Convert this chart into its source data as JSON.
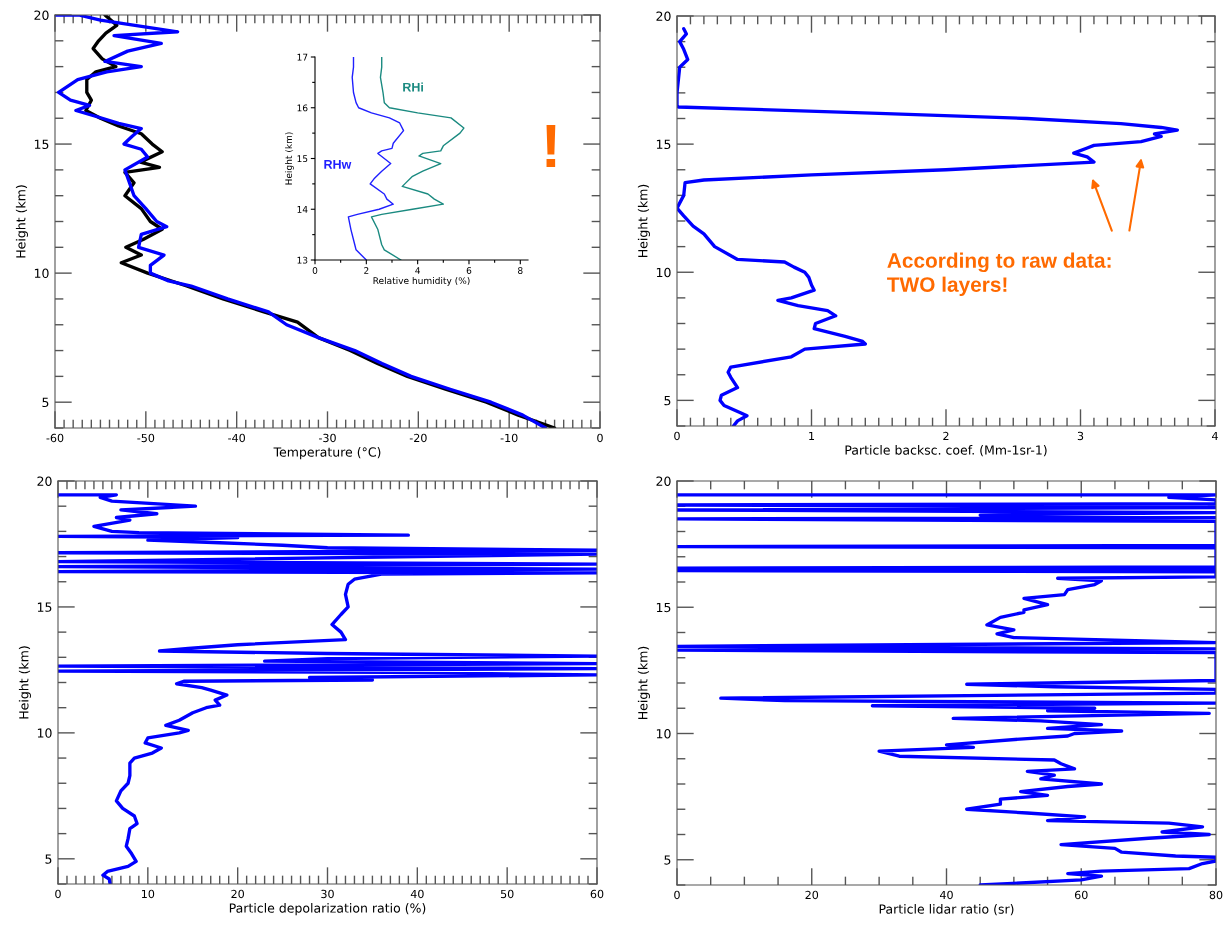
{
  "chart_data": [
    {
      "type": "line",
      "xlabel": "Temperature (°C)",
      "ylabel": "Height (km)",
      "xlim": [
        -60,
        0
      ],
      "ylim": [
        4,
        20
      ],
      "xticks": [
        -60,
        {
          "value": -59,
          "label": null
        },
        {
          "value": -58,
          "label": null
        },
        {
          "value": -57,
          "label": null
        },
        {
          "value": -56,
          "label": null
        },
        {
          "value": -55,
          "label": null
        },
        {
          "value": -54,
          "label": null
        },
        {
          "value": -53,
          "label": null
        },
        {
          "value": -52,
          "label": null
        },
        {
          "value": -51,
          "label": null
        },
        -50,
        {
          "value": -49,
          "label": null
        },
        {
          "value": -48,
          "label": null
        },
        {
          "value": -47,
          "label": null
        },
        {
          "value": -46,
          "label": null
        },
        {
          "value": -45,
          "label": null
        },
        {
          "value": -44,
          "label": null
        },
        {
          "value": -43,
          "label": null
        },
        {
          "value": -42,
          "label": null
        },
        {
          "value": -41,
          "label": null
        },
        -40,
        {
          "value": -39,
          "label": null
        },
        {
          "value": -38,
          "label": null
        },
        {
          "value": -37,
          "label": null
        },
        {
          "value": -36,
          "label": null
        },
        {
          "value": -35,
          "label": null
        },
        {
          "value": -34,
          "label": null
        },
        {
          "value": -33,
          "label": null
        },
        {
          "value": -32,
          "label": null
        },
        {
          "value": -31,
          "label": null
        },
        -30,
        {
          "value": -29,
          "label": null
        },
        {
          "value": -28,
          "label": null
        },
        {
          "value": -27,
          "label": null
        },
        {
          "value": -26,
          "label": null
        },
        {
          "value": -25,
          "label": null
        },
        {
          "value": -24,
          "label": null
        },
        {
          "value": -23,
          "label": null
        },
        {
          "value": -22,
          "label": null
        },
        {
          "value": -21,
          "label": null
        },
        -20,
        {
          "value": -19,
          "label": null
        },
        {
          "value": -18,
          "label": null
        },
        {
          "value": -17,
          "label": null
        },
        {
          "value": -16,
          "label": null
        },
        {
          "value": -15,
          "label": null
        },
        {
          "value": -14,
          "label": null
        },
        {
          "value": -13,
          "label": null
        },
        {
          "value": -12,
          "label": null
        },
        {
          "value": -11,
          "label": null
        },
        -10,
        {
          "value": -9,
          "label": null
        },
        {
          "value": -8,
          "label": null
        },
        {
          "value": -7,
          "label": null
        },
        {
          "value": -6,
          "label": null
        },
        {
          "value": -5,
          "label": null
        },
        {
          "value": -4,
          "label": null
        },
        {
          "value": -3,
          "label": null
        },
        {
          "value": -2,
          "label": null
        },
        {
          "value": -1,
          "label": null
        },
        0
      ],
      "yticks": [
        {
          "value": 4,
          "label": null
        },
        5,
        {
          "value": 6,
          "label": null
        },
        {
          "value": 7,
          "label": null
        },
        {
          "value": 8,
          "label": null
        },
        {
          "value": 9,
          "label": null
        },
        10,
        {
          "value": 11,
          "label": null
        },
        {
          "value": 12,
          "label": null
        },
        {
          "value": 13,
          "label": null
        },
        {
          "value": 14,
          "label": null
        },
        15,
        {
          "value": 16,
          "label": null
        },
        {
          "value": 17,
          "label": null
        },
        {
          "value": 18,
          "label": null
        },
        {
          "value": 19,
          "label": null
        },
        20
      ],
      "legend": false,
      "grid": false,
      "annotations": [
        "!"
      ],
      "series": [
        {
          "color": "#000000",
          "x": [
            -54.5,
            -53.2,
            -54.4,
            -55.2,
            -55.8,
            -54.8,
            -53.3,
            -55.5,
            -56.5,
            -56.5,
            -56.0,
            -56.6,
            -55.0,
            -53.0,
            -50.5,
            -49.3,
            -48.2,
            -50.6,
            -48.5,
            -52.3,
            -51.3,
            -52.3,
            -50.5,
            -49.5,
            -48.2,
            -50.3,
            -52.2,
            -50.5,
            -52.7,
            -49.8,
            -45.5,
            -41.5,
            -37.0,
            -33.3,
            -31.0,
            -27.5,
            -24.5,
            -21.2,
            -17.0,
            -12.5,
            -9.0,
            -5.0
          ],
          "values": [
            20,
            19.6,
            19.3,
            19.0,
            18.7,
            18.3,
            18.0,
            17.8,
            17.5,
            17.0,
            16.7,
            16.3,
            16.0,
            15.7,
            15.4,
            15.0,
            14.7,
            14.3,
            14.1,
            13.9,
            13.5,
            13.0,
            12.5,
            12.0,
            11.7,
            11.3,
            11.0,
            10.7,
            10.4,
            10.0,
            9.5,
            9.0,
            8.5,
            8.1,
            7.5,
            7.0,
            6.5,
            6.0,
            5.5,
            5.0,
            4.5,
            4.0
          ]
        },
        {
          "color": "#0000ff",
          "x": [
            -59.9,
            -57.4,
            -55.0,
            -46.5,
            -53.5,
            -48.3,
            -52.0,
            -54.5,
            -50.5,
            -54.3,
            -57.5,
            -59.6,
            -58.3,
            -56.2,
            -57.7,
            -54.8,
            -53.0,
            -50.5,
            -51.5,
            -52.4,
            -50.5,
            -49.8,
            -52.3,
            -51.8,
            -51.3,
            -50.0,
            -48.8,
            -47.7,
            -50.5,
            -50.8,
            -48.0,
            -49.5,
            -49.5,
            -47.5,
            -45.0,
            -41.0,
            -36.5,
            -34.5,
            -31.0,
            -27.0,
            -24.0,
            -20.8,
            -16.5,
            -12.0,
            -8.5,
            -6.0
          ],
          "values": [
            20,
            20,
            19.8,
            19.35,
            19.2,
            18.9,
            18.6,
            18.2,
            18.0,
            17.8,
            17.5,
            17.0,
            16.7,
            16.5,
            16.3,
            16.0,
            15.8,
            15.6,
            15.3,
            15.0,
            14.8,
            14.5,
            14.0,
            13.5,
            13.0,
            12.5,
            12.0,
            11.8,
            11.5,
            11.0,
            10.7,
            10.3,
            10.0,
            9.7,
            9.5,
            9.0,
            8.5,
            8.0,
            7.5,
            7.0,
            6.5,
            6.0,
            5.5,
            5.0,
            4.5,
            4.0
          ]
        }
      ]
    },
    {
      "type": "line",
      "xlabel": "Relative humidity (%)",
      "ylabel": "Height (km)",
      "xlim": [
        0,
        8.3
      ],
      "ylim": [
        13,
        17
      ],
      "xticks": [
        0,
        {
          "value": 1,
          "label": null
        },
        2,
        {
          "value": 3,
          "label": null
        },
        4,
        {
          "value": 5,
          "label": null
        },
        6,
        {
          "value": 7,
          "label": null
        },
        8
      ],
      "yticks": [
        13,
        {
          "value": 13.5,
          "label": null
        },
        14,
        {
          "value": 14.5,
          "label": null
        },
        15,
        {
          "value": 15.5,
          "label": null
        },
        16,
        {
          "value": 16.5,
          "label": null
        },
        17
      ],
      "legend": false,
      "grid": false,
      "series": [
        {
          "name": "RHw",
          "color": "#1f1fff",
          "x": [
            1.5,
            1.5,
            1.45,
            1.5,
            1.6,
            1.7,
            2.2,
            2.9,
            3.3,
            3.45,
            3.05,
            3.0,
            2.6,
            2.45,
            2.7,
            2.95,
            2.6,
            2.3,
            2.15,
            2.7,
            2.8,
            3.05,
            2.5,
            1.65,
            1.3,
            1.4,
            1.55,
            1.6,
            2.0
          ],
          "values": [
            17.0,
            16.8,
            16.6,
            16.3,
            16.1,
            16.0,
            15.9,
            15.8,
            15.7,
            15.55,
            15.3,
            15.2,
            15.15,
            15.1,
            15.0,
            14.9,
            14.75,
            14.6,
            14.5,
            14.3,
            14.2,
            14.1,
            14.0,
            13.9,
            13.85,
            13.6,
            13.3,
            13.2,
            13.0
          ]
        },
        {
          "name": "RHi",
          "color": "#1a8a80",
          "x": [
            2.6,
            2.6,
            2.55,
            2.65,
            2.7,
            2.9,
            4.0,
            5.3,
            5.8,
            5.65,
            5.0,
            4.9,
            4.2,
            4.05,
            4.9,
            4.2,
            3.8,
            3.5,
            3.4,
            4.4,
            4.65,
            5.0,
            3.8,
            2.6,
            2.2,
            2.45,
            2.6,
            2.7,
            3.35
          ],
          "values": [
            17.0,
            16.8,
            16.6,
            16.3,
            16.1,
            16.0,
            15.9,
            15.8,
            15.6,
            15.5,
            15.25,
            15.15,
            15.1,
            15.05,
            14.9,
            14.75,
            14.65,
            14.5,
            14.45,
            14.3,
            14.2,
            14.1,
            14.0,
            13.9,
            13.85,
            13.6,
            13.3,
            13.2,
            13.0
          ]
        }
      ]
    },
    {
      "type": "line",
      "xlabel": "Particle backsc. coef. (Mm-1sr-1)",
      "ylabel": "Height (km)",
      "xlim": [
        0,
        4
      ],
      "ylim": [
        4,
        20
      ],
      "xticks": [
        0,
        {
          "value": 0.1,
          "label": null
        },
        {
          "value": 0.2,
          "label": null
        },
        {
          "value": 0.3,
          "label": null
        },
        {
          "value": 0.4,
          "label": null
        },
        {
          "value": 0.5,
          "label": null
        },
        {
          "value": 0.6,
          "label": null
        },
        {
          "value": 0.7,
          "label": null
        },
        {
          "value": 0.8,
          "label": null
        },
        {
          "value": 0.9,
          "label": null
        },
        1,
        {
          "value": 1.1,
          "label": null
        },
        {
          "value": 1.2,
          "label": null
        },
        {
          "value": 1.3,
          "label": null
        },
        {
          "value": 1.4,
          "label": null
        },
        {
          "value": 1.5,
          "label": null
        },
        {
          "value": 1.6,
          "label": null
        },
        {
          "value": 1.7,
          "label": null
        },
        {
          "value": 1.8,
          "label": null
        },
        {
          "value": 1.9,
          "label": null
        },
        2,
        {
          "value": 2.1,
          "label": null
        },
        {
          "value": 2.2,
          "label": null
        },
        {
          "value": 2.3,
          "label": null
        },
        {
          "value": 2.4,
          "label": null
        },
        {
          "value": 2.5,
          "label": null
        },
        {
          "value": 2.6,
          "label": null
        },
        {
          "value": 2.7,
          "label": null
        },
        {
          "value": 2.8,
          "label": null
        },
        {
          "value": 2.9,
          "label": null
        },
        3,
        {
          "value": 3.1,
          "label": null
        },
        {
          "value": 3.2,
          "label": null
        },
        {
          "value": 3.3,
          "label": null
        },
        {
          "value": 3.4,
          "label": null
        },
        {
          "value": 3.5,
          "label": null
        },
        {
          "value": 3.6,
          "label": null
        },
        {
          "value": 3.7,
          "label": null
        },
        {
          "value": 3.8,
          "label": null
        },
        {
          "value": 3.9,
          "label": null
        },
        4
      ],
      "yticks": [
        {
          "value": 4,
          "label": null
        },
        5,
        {
          "value": 6,
          "label": null
        },
        {
          "value": 7,
          "label": null
        },
        {
          "value": 8,
          "label": null
        },
        {
          "value": 9,
          "label": null
        },
        10,
        {
          "value": 11,
          "label": null
        },
        {
          "value": 12,
          "label": null
        },
        {
          "value": 13,
          "label": null
        },
        {
          "value": 14,
          "label": null
        },
        15,
        {
          "value": 16,
          "label": null
        },
        {
          "value": 17,
          "label": null
        },
        {
          "value": 18,
          "label": null
        },
        {
          "value": 19,
          "label": null
        },
        20
      ],
      "legend": false,
      "grid": false,
      "annotations": [
        "According to raw data:\nTWO layers!"
      ],
      "series": [
        {
          "color": "#0000ff",
          "x": [
            0.05,
            0.07,
            0.02,
            0.05,
            0.08,
            0.02,
            0.01,
            0.0,
            0.0,
            0.01,
            1.5,
            2.6,
            3.3,
            3.6,
            3.72,
            3.55,
            3.6,
            3.45,
            3.1,
            3.05,
            2.95,
            3.05,
            3.1,
            2.0,
            1.0,
            0.2,
            0.06,
            0.05,
            0.0,
            0.05,
            0.12,
            0.2,
            0.28,
            0.45,
            0.8,
            0.87,
            0.95,
            0.98,
            1.0,
            1.02,
            0.85,
            0.75,
            0.9,
            1.12,
            1.18,
            1.03,
            1.02,
            1.25,
            1.38,
            1.4,
            0.95,
            0.85,
            0.4,
            0.38,
            0.4,
            0.45,
            0.33,
            0.32,
            0.35,
            0.48,
            0.52,
            0.45,
            0.42
          ],
          "values": [
            19.5,
            19.3,
            19.0,
            18.7,
            18.3,
            18.0,
            17.5,
            17.0,
            16.5,
            16.45,
            16.2,
            16.0,
            15.8,
            15.65,
            15.55,
            15.4,
            15.3,
            15.1,
            14.95,
            14.85,
            14.65,
            14.5,
            14.3,
            14.0,
            13.8,
            13.6,
            13.5,
            13.0,
            12.5,
            12.2,
            11.8,
            11.5,
            11.0,
            10.5,
            10.4,
            10.2,
            10.0,
            9.8,
            9.5,
            9.3,
            9.0,
            8.9,
            8.7,
            8.5,
            8.3,
            8.0,
            7.8,
            7.5,
            7.3,
            7.2,
            7.0,
            6.7,
            6.3,
            6.1,
            5.9,
            5.5,
            5.2,
            5.0,
            4.8,
            4.5,
            4.4,
            4.2,
            4.0
          ]
        }
      ]
    },
    {
      "type": "line",
      "xlabel": "Particle depolarization ratio (%)",
      "ylabel": "Height (km)",
      "xlim": [
        0,
        60
      ],
      "ylim": [
        4,
        20
      ],
      "xticks": [
        0,
        {
          "value": 1,
          "label": null
        },
        {
          "value": 2,
          "label": null
        },
        {
          "value": 3,
          "label": null
        },
        {
          "value": 4,
          "label": null
        },
        {
          "value": 5,
          "label": null
        },
        {
          "value": 6,
          "label": null
        },
        {
          "value": 7,
          "label": null
        },
        {
          "value": 8,
          "label": null
        },
        {
          "value": 9,
          "label": null
        },
        10,
        {
          "value": 11,
          "label": null
        },
        {
          "value": 12,
          "label": null
        },
        {
          "value": 13,
          "label": null
        },
        {
          "value": 14,
          "label": null
        },
        {
          "value": 15,
          "label": null
        },
        {
          "value": 16,
          "label": null
        },
        {
          "value": 17,
          "label": null
        },
        {
          "value": 18,
          "label": null
        },
        {
          "value": 19,
          "label": null
        },
        20,
        {
          "value": 21,
          "label": null
        },
        {
          "value": 22,
          "label": null
        },
        {
          "value": 23,
          "label": null
        },
        {
          "value": 24,
          "label": null
        },
        {
          "value": 25,
          "label": null
        },
        {
          "value": 26,
          "label": null
        },
        {
          "value": 27,
          "label": null
        },
        {
          "value": 28,
          "label": null
        },
        {
          "value": 29,
          "label": null
        },
        30,
        {
          "value": 31,
          "label": null
        },
        {
          "value": 32,
          "label": null
        },
        {
          "value": 33,
          "label": null
        },
        {
          "value": 34,
          "label": null
        },
        {
          "value": 35,
          "label": null
        },
        {
          "value": 36,
          "label": null
        },
        {
          "value": 37,
          "label": null
        },
        {
          "value": 38,
          "label": null
        },
        {
          "value": 39,
          "label": null
        },
        40,
        {
          "value": 41,
          "label": null
        },
        {
          "value": 42,
          "label": null
        },
        {
          "value": 43,
          "label": null
        },
        {
          "value": 44,
          "label": null
        },
        {
          "value": 45,
          "label": null
        },
        {
          "value": 46,
          "label": null
        },
        {
          "value": 47,
          "label": null
        },
        {
          "value": 48,
          "label": null
        },
        {
          "value": 49,
          "label": null
        },
        50,
        {
          "value": 51,
          "label": null
        },
        {
          "value": 52,
          "label": null
        },
        {
          "value": 53,
          "label": null
        },
        {
          "value": 54,
          "label": null
        },
        {
          "value": 55,
          "label": null
        },
        {
          "value": 56,
          "label": null
        },
        {
          "value": 57,
          "label": null
        },
        {
          "value": 58,
          "label": null
        },
        {
          "value": 59,
          "label": null
        },
        60
      ],
      "yticks": [
        {
          "value": 4,
          "label": null
        },
        5,
        {
          "value": 6,
          "label": null
        },
        {
          "value": 7,
          "label": null
        },
        {
          "value": 8,
          "label": null
        },
        {
          "value": 9,
          "label": null
        },
        10,
        {
          "value": 11,
          "label": null
        },
        {
          "value": 12,
          "label": null
        },
        {
          "value": 13,
          "label": null
        },
        {
          "value": 14,
          "label": null
        },
        15,
        {
          "value": 16,
          "label": null
        },
        {
          "value": 17,
          "label": null
        },
        {
          "value": 18,
          "label": null
        },
        {
          "value": 19,
          "label": null
        },
        20
      ],
      "legend": false,
      "grid": false,
      "series": [
        {
          "color": "#0000ff",
          "x": [
            0,
            6.5,
            4.7,
            6,
            15.3,
            7,
            11,
            6.5,
            8,
            4,
            6,
            9,
            39,
            0,
            20,
            10,
            18,
            25,
            30,
            60,
            0,
            60,
            0,
            60,
            0,
            60,
            0,
            60,
            36,
            33,
            32.3,
            32,
            32.3,
            31.5,
            30.5,
            31.5,
            32,
            20,
            14.5,
            11.3,
            30,
            60,
            30,
            23,
            60,
            0,
            60,
            0,
            37,
            60,
            28,
            35,
            14,
            13.2,
            16,
            17,
            18.8,
            17.5,
            18,
            16.5,
            15,
            13.5,
            12,
            14.5,
            13.5,
            10,
            9.7,
            11.5,
            10.5,
            8.5,
            8,
            8,
            7.8,
            7,
            6.5,
            7.2,
            8.5,
            8.8,
            8,
            7.8,
            7.6,
            8.2,
            8.7,
            7.8,
            5.5,
            5,
            5.7,
            5.8
          ],
          "values": [
            19.45,
            19.45,
            19.35,
            19.2,
            19.0,
            18.85,
            18.7,
            18.55,
            18.45,
            18.2,
            18.0,
            17.95,
            17.85,
            17.8,
            17.75,
            17.65,
            17.55,
            17.45,
            17.35,
            17.25,
            17.15,
            17.1,
            16.8,
            16.7,
            16.6,
            16.5,
            16.4,
            16.35,
            16.3,
            16.1,
            15.9,
            15.5,
            15.0,
            14.7,
            14.3,
            14.0,
            13.7,
            13.5,
            13.35,
            13.25,
            13.15,
            13.05,
            12.95,
            12.85,
            12.75,
            12.65,
            12.55,
            12.45,
            12.4,
            12.3,
            12.2,
            12.1,
            12.05,
            11.95,
            11.8,
            11.7,
            11.5,
            11.3,
            11.1,
            11.0,
            10.8,
            10.5,
            10.3,
            10.1,
            10.0,
            9.8,
            9.6,
            9.4,
            9.2,
            9.0,
            8.8,
            8.3,
            8.0,
            7.7,
            7.3,
            7.0,
            6.7,
            6.4,
            6.2,
            5.8,
            5.5,
            5.2,
            4.9,
            4.7,
            4.5,
            4.35,
            4.2,
            4.0
          ]
        }
      ]
    },
    {
      "type": "line",
      "xlabel": "Particle lidar ratio (sr)",
      "ylabel": "Height (km)",
      "xlim": [
        0,
        80
      ],
      "ylim": [
        4,
        20
      ],
      "xticks": [
        0,
        {
          "value": 5,
          "label": null
        },
        {
          "value": 10,
          "label": null
        },
        {
          "value": 15,
          "label": null
        },
        20,
        {
          "value": 25,
          "label": null
        },
        {
          "value": 30,
          "label": null
        },
        {
          "value": 35,
          "label": null
        },
        40,
        {
          "value": 45,
          "label": null
        },
        {
          "value": 50,
          "label": null
        },
        {
          "value": 55,
          "label": null
        },
        60,
        {
          "value": 65,
          "label": null
        },
        {
          "value": 70,
          "label": null
        },
        {
          "value": 75,
          "label": null
        },
        80
      ],
      "yticks": [
        {
          "value": 4,
          "label": null
        },
        5,
        {
          "value": 6,
          "label": null
        },
        {
          "value": 7,
          "label": null
        },
        {
          "value": 8,
          "label": null
        },
        {
          "value": 9,
          "label": null
        },
        10,
        {
          "value": 11,
          "label": null
        },
        {
          "value": 12,
          "label": null
        },
        {
          "value": 13,
          "label": null
        },
        {
          "value": 14,
          "label": null
        },
        15,
        {
          "value": 16,
          "label": null
        },
        {
          "value": 17,
          "label": null
        },
        {
          "value": 18,
          "label": null
        },
        {
          "value": 19,
          "label": null
        },
        20
      ],
      "legend": false,
      "grid": false,
      "series": [
        {
          "color": "#0000ff",
          "x": [
            0,
            80,
            73,
            80,
            80,
            0,
            80,
            0,
            80,
            45,
            80,
            0,
            80,
            80,
            0,
            80,
            80,
            0,
            80,
            0,
            80,
            80,
            56.5,
            63,
            62,
            58,
            57.5,
            51.5,
            55,
            51.5,
            51.5,
            48,
            46,
            50,
            47.5,
            50,
            65,
            80,
            0,
            80,
            0,
            80,
            80,
            43,
            56,
            80,
            80,
            6.5,
            16,
            80,
            29,
            62,
            55,
            79,
            41,
            54,
            63,
            55,
            66,
            59,
            58,
            52,
            40,
            44,
            30,
            33,
            56,
            57,
            59,
            52,
            56,
            54,
            63,
            58,
            51,
            55,
            48,
            48,
            43,
            52,
            60.5,
            55,
            73,
            78,
            72,
            79,
            70,
            57,
            65,
            66,
            74,
            80,
            80,
            78,
            76,
            63,
            58,
            63,
            60,
            45
          ],
          "values": [
            19.45,
            19.45,
            19.35,
            19.25,
            19.1,
            19.05,
            18.95,
            18.85,
            18.75,
            18.65,
            18.55,
            18.5,
            18.4,
            17.45,
            17.4,
            17.35,
            16.6,
            16.55,
            16.5,
            16.45,
            16.4,
            16.2,
            16.15,
            16.05,
            15.9,
            15.7,
            15.5,
            15.35,
            15.1,
            14.9,
            14.8,
            14.6,
            14.3,
            14.1,
            13.95,
            13.8,
            13.7,
            13.6,
            13.45,
            13.35,
            13.3,
            13.2,
            12.1,
            11.95,
            11.85,
            11.75,
            11.6,
            11.4,
            11.3,
            11.2,
            11.1,
            11.0,
            10.9,
            10.8,
            10.6,
            10.5,
            10.35,
            10.2,
            10.1,
            10.0,
            9.9,
            9.8,
            9.55,
            9.45,
            9.3,
            9.1,
            8.95,
            8.8,
            8.6,
            8.5,
            8.35,
            8.2,
            8.0,
            7.9,
            7.7,
            7.55,
            7.4,
            7.2,
            7.0,
            6.85,
            6.7,
            6.55,
            6.45,
            6.3,
            6.1,
            6.0,
            5.85,
            5.6,
            5.45,
            5.3,
            5.15,
            5.1,
            4.95,
            4.85,
            4.65,
            4.55,
            4.45,
            4.35,
            4.2,
            4.0
          ]
        }
      ]
    }
  ]
}
